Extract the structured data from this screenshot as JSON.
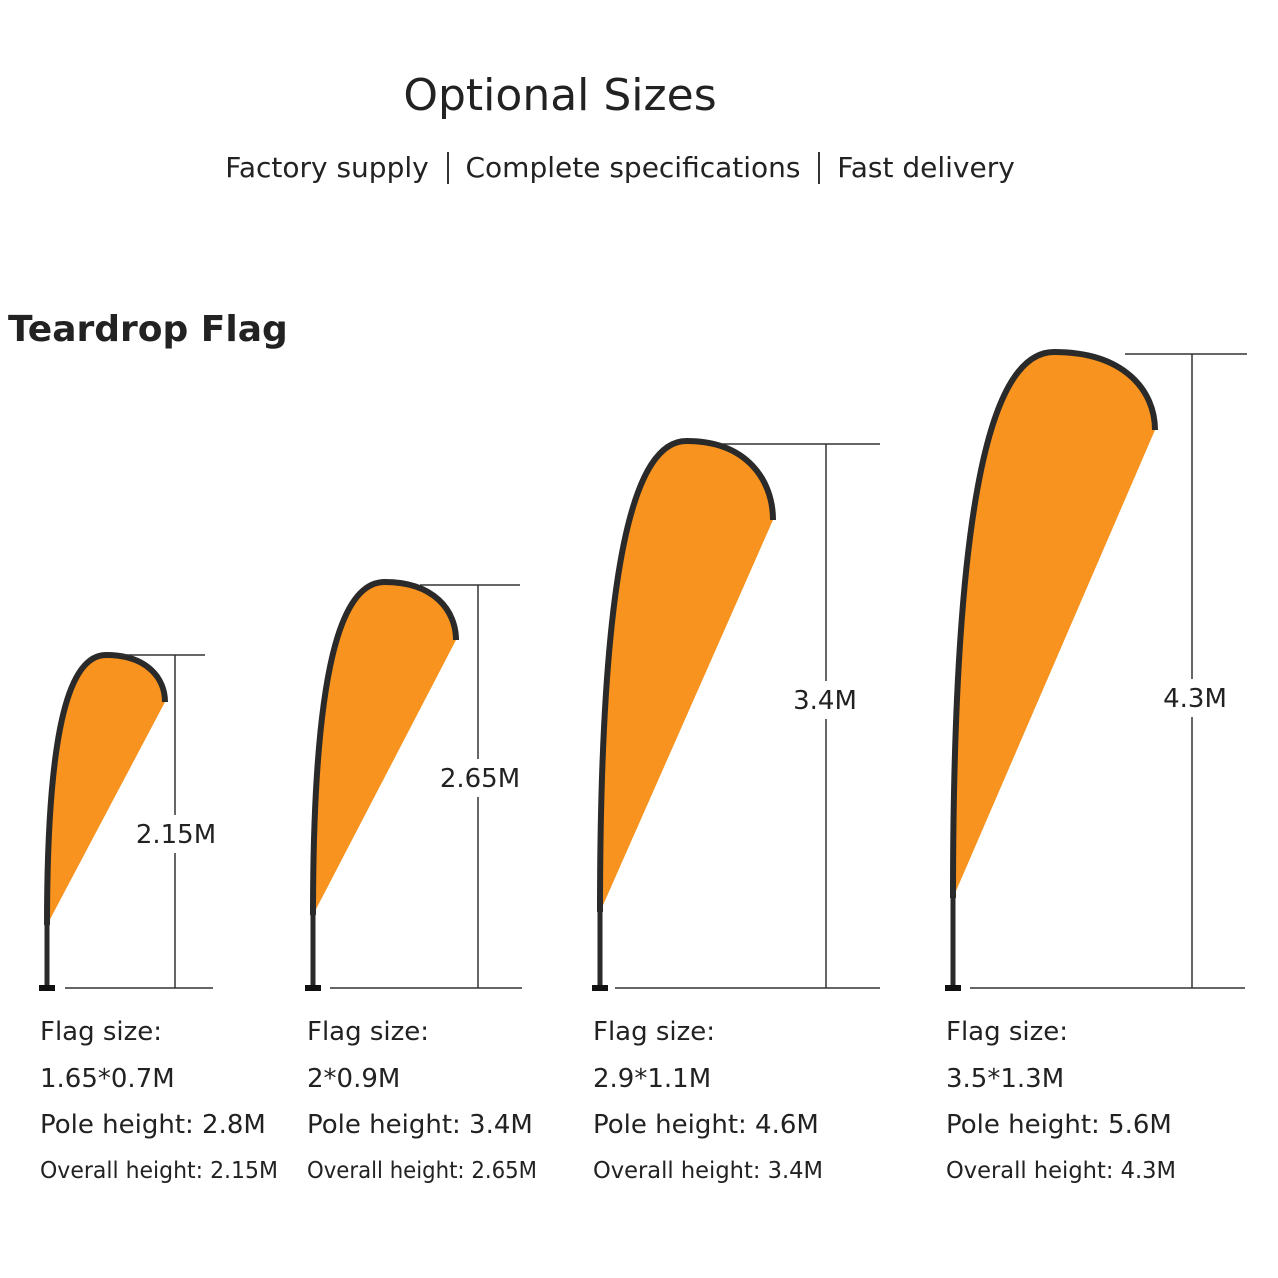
{
  "header": {
    "title": "Optional Sizes",
    "taglines": [
      "Factory supply",
      "Complete specifications",
      "Fast delivery"
    ]
  },
  "section_title": "Teardrop Flag",
  "flags": [
    {
      "height": "2.15M",
      "flag_size_label": "Flag size:",
      "flag_size": "1.65*0.7M",
      "pole_height": "Pole height: 2.8M",
      "overall_height": "Overall height: 2.15M"
    },
    {
      "height": "2.65M",
      "flag_size_label": "Flag size:",
      "flag_size": "2*0.9M",
      "pole_height": "Pole height: 3.4M",
      "overall_height": "Overall height: 2.65M"
    },
    {
      "height": "3.4M",
      "flag_size_label": "Flag size:",
      "flag_size": "2.9*1.1M",
      "pole_height": "Pole height: 4.6M",
      "overall_height": "Overall height: 3.4M"
    },
    {
      "height": "4.3M",
      "flag_size_label": "Flag size:",
      "flag_size": "3.5*1.3M",
      "pole_height": "Pole height: 5.6M",
      "overall_height": "Overall height: 4.3M"
    }
  ]
}
